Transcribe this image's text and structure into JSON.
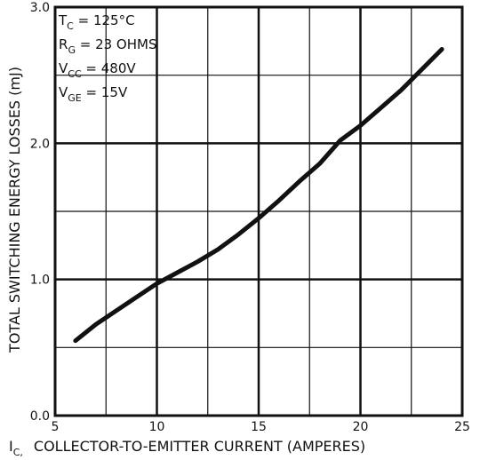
{
  "chart_data": {
    "type": "line",
    "xlabel_main": "I",
    "xlabel_sub": "C,",
    "xlabel_rest": "COLLECTOR-TO-EMITTER CURRENT (AMPERES)",
    "ylabel": "TOTAL SWITCHING ENERGY LOSSES (mJ)",
    "xlim": [
      5,
      25
    ],
    "ylim": [
      0,
      3.0
    ],
    "x_ticks": [
      "5",
      "10",
      "15",
      "20",
      "25"
    ],
    "y_ticks": [
      "0.0",
      "1.0",
      "2.0",
      "3.0"
    ],
    "grid": true,
    "series": [
      {
        "x": [
          6,
          7,
          8,
          9,
          10,
          11,
          12,
          13,
          14,
          15,
          16,
          17,
          18,
          19,
          20,
          21,
          22,
          23,
          24
        ],
        "y": [
          0.55,
          0.67,
          0.77,
          0.87,
          0.97,
          1.05,
          1.13,
          1.22,
          1.33,
          1.45,
          1.58,
          1.72,
          1.85,
          2.02,
          2.13,
          2.26,
          2.39,
          2.54,
          2.69
        ]
      }
    ],
    "annotations": [
      {
        "main": "T",
        "sub": "C",
        "rest": " = 125°C"
      },
      {
        "main": "R",
        "sub": "G",
        "rest": " = 23 OHMS"
      },
      {
        "main": "V",
        "sub": "CC",
        "rest": " = 480V"
      },
      {
        "main": "V",
        "sub": "GE",
        "rest": " = 15V"
      }
    ]
  }
}
